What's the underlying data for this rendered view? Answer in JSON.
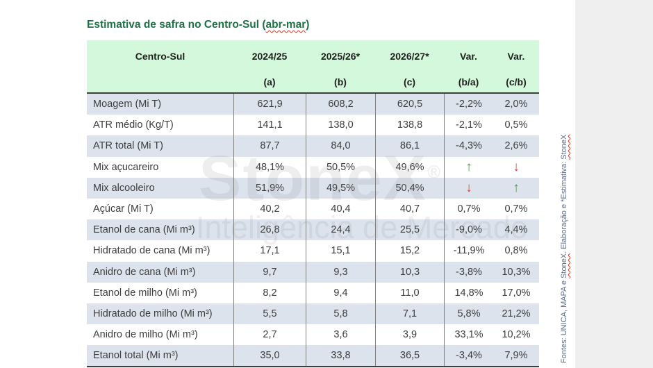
{
  "title": {
    "prefix": "Estimativa de safra no Centro-Sul (",
    "highlight": "abr-mar",
    "suffix": ")"
  },
  "colors": {
    "title_green": "#1e7145",
    "header_green": "#d3f8dc",
    "band_blue": "#dce3ed",
    "grid_line": "#7f7f7f",
    "arrow_up_green": "#3ca42c",
    "arrow_down_red": "#e0402f",
    "side_panel_gray": "#efefef",
    "source_text": "#5a6b8e"
  },
  "table": {
    "header": [
      {
        "line1": "Centro-Sul",
        "line2": ""
      },
      {
        "line1": "2024/25",
        "line2": "(a)"
      },
      {
        "line1": "2025/26*",
        "line2": "(b)"
      },
      {
        "line1": "2026/27*",
        "line2": "(c)"
      },
      {
        "line1": "Var.",
        "line2": "(b/a)"
      },
      {
        "line1": "Var.",
        "line2": "(c/b)"
      }
    ],
    "rows": [
      {
        "label": "Moagem (Mi T)",
        "a": "621,9",
        "b": "608,2",
        "c": "620,5",
        "var_ba": {
          "text": "-2,2%"
        },
        "var_cb": {
          "text": "2,0%"
        }
      },
      {
        "label": "ATR médio (Kg/T)",
        "a": "141,1",
        "b": "138,0",
        "c": "138,8",
        "var_ba": {
          "text": "-2,1%"
        },
        "var_cb": {
          "text": "0,5%"
        }
      },
      {
        "label": "ATR total (Mi T)",
        "a": "87,7",
        "b": "84,0",
        "c": "86,1",
        "var_ba": {
          "text": "-4,3%"
        },
        "var_cb": {
          "text": "2,6%"
        }
      },
      {
        "label": "Mix açucareiro",
        "a": "48,1%",
        "b": "50,5%",
        "c": "49,6%",
        "var_ba": {
          "text": "↑",
          "arrow": "up"
        },
        "var_cb": {
          "text": "↓",
          "arrow": "down"
        }
      },
      {
        "label": "Mix alcooleiro",
        "a": "51,9%",
        "b": "49,5%",
        "c": "50,4%",
        "var_ba": {
          "text": "↓",
          "arrow": "down"
        },
        "var_cb": {
          "text": "↑",
          "arrow": "up"
        }
      },
      {
        "label": "Açúcar (Mi T)",
        "a": "40,2",
        "b": "40,4",
        "c": "40,7",
        "var_ba": {
          "text": "0,7%"
        },
        "var_cb": {
          "text": "0,7%"
        }
      },
      {
        "label": "Etanol de cana (Mi m³)",
        "a": "26,8",
        "b": "24,4",
        "c": "25,5",
        "var_ba": {
          "text": "-9,0%"
        },
        "var_cb": {
          "text": "4,4%"
        }
      },
      {
        "label": "Hidratado de cana (Mi m³)",
        "a": "17,1",
        "b": "15,1",
        "c": "15,2",
        "var_ba": {
          "text": "-11,9%"
        },
        "var_cb": {
          "text": "0,8%"
        }
      },
      {
        "label": "Anidro de cana (Mi m³)",
        "a": "9,7",
        "b": "9,3",
        "c": "10,3",
        "var_ba": {
          "text": "-3,8%"
        },
        "var_cb": {
          "text": "10,3%"
        }
      },
      {
        "label": "Etanol de milho (Mi m³)",
        "a": "8,2",
        "b": "9,4",
        "c": "11,0",
        "var_ba": {
          "text": "14,8%"
        },
        "var_cb": {
          "text": "17,0%"
        }
      },
      {
        "label": "Hidratado de milho (Mi m³)",
        "a": "5,5",
        "b": "5,8",
        "c": "7,1",
        "var_ba": {
          "text": "5,8%"
        },
        "var_cb": {
          "text": "21,2%"
        }
      },
      {
        "label": "Anidro de milho (Mi m³)",
        "a": "2,7",
        "b": "3,6",
        "c": "3,9",
        "var_ba": {
          "text": "33,1%"
        },
        "var_cb": {
          "text": "10,2%"
        }
      },
      {
        "label": "Etanol total (Mi m³)",
        "a": "35,0",
        "b": "33,8",
        "c": "36,5",
        "var_ba": {
          "text": "-3,4%"
        },
        "var_cb": {
          "text": "7,9%"
        }
      }
    ]
  },
  "watermark": {
    "brand": "StoneX",
    "reg": "®",
    "tagline": "Inteligência de Mercado"
  },
  "source": {
    "part1": "Fontes: UNICA, MAPA e ",
    "brand1": "StoneX",
    "part2": ". Elaboração e *Estimativa: ",
    "brand2": "StoneX"
  }
}
